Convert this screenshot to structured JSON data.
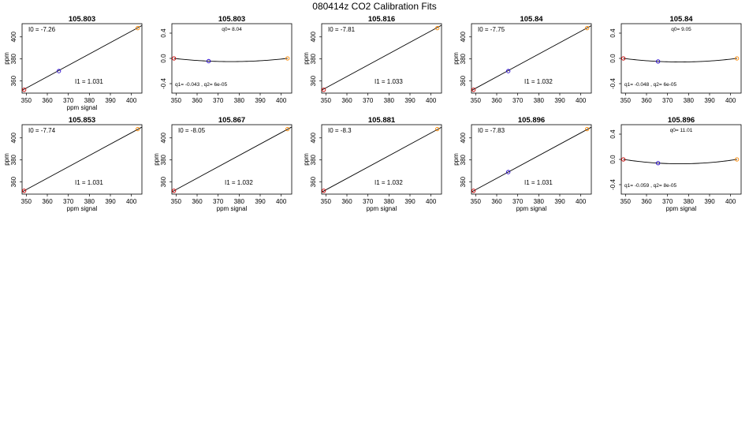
{
  "figure_title": "080414z   CO2 Calibration Fits",
  "colors": {
    "low": "#cc0000",
    "mid": "#2200cc",
    "high": "#ff8800",
    "line": "#000000"
  },
  "chart_data": [
    {
      "type": "scatter",
      "kind": "linear",
      "title": "105.803",
      "xlabel": "ppm signal",
      "ylabel": "ppm",
      "xlim": [
        348,
        405
      ],
      "ylim": [
        349,
        412
      ],
      "xticks": [
        "350",
        "360",
        "370",
        "380",
        "390",
        "400"
      ],
      "yticks": [
        "360",
        "380",
        "400"
      ],
      "points": [
        {
          "x": 349,
          "y": 352
        },
        {
          "x": 365.5,
          "y": 369
        },
        {
          "x": 403,
          "y": 408
        }
      ],
      "intercept": -7.26,
      "slope": 1.031,
      "annotations": [
        "I0 =  -7.26",
        "I1 =  1.031"
      ]
    },
    {
      "type": "scatter",
      "kind": "residual",
      "title": "105.803",
      "xlabel": "",
      "ylabel": "",
      "xlim": [
        348,
        405
      ],
      "ylim": [
        -0.55,
        0.55
      ],
      "xticks": [
        "350",
        "360",
        "370",
        "380",
        "390",
        "400"
      ],
      "yticks": [
        "-0.4",
        "0.0",
        "0.4"
      ],
      "points": [
        {
          "x": 349,
          "y": 0.0
        },
        {
          "x": 365.5,
          "y": -0.043
        },
        {
          "x": 403,
          "y": 0.0
        }
      ],
      "q0": 8.04,
      "q1": -0.043,
      "q2": 6e-05,
      "annotations": [
        "q0= 8.04",
        "q1= -0.043 ,  q2= 6e-05"
      ]
    },
    {
      "type": "scatter",
      "kind": "linear",
      "title": "105.816",
      "xlabel": "",
      "ylabel": "ppm",
      "xlim": [
        348,
        405
      ],
      "ylim": [
        349,
        412
      ],
      "xticks": [
        "350",
        "360",
        "370",
        "380",
        "390",
        "400"
      ],
      "yticks": [
        "360",
        "380",
        "400"
      ],
      "points": [
        {
          "x": 349,
          "y": 352
        },
        {
          "x": 403,
          "y": 408
        }
      ],
      "intercept": -7.81,
      "slope": 1.033,
      "annotations": [
        "I0 =  -7.81",
        "I1 =  1.033"
      ]
    },
    {
      "type": "scatter",
      "kind": "linear",
      "title": "105.84",
      "xlabel": "",
      "ylabel": "ppm",
      "xlim": [
        348,
        405
      ],
      "ylim": [
        349,
        412
      ],
      "xticks": [
        "350",
        "360",
        "370",
        "380",
        "390",
        "400"
      ],
      "yticks": [
        "360",
        "380",
        "400"
      ],
      "points": [
        {
          "x": 349,
          "y": 352
        },
        {
          "x": 365.5,
          "y": 369
        },
        {
          "x": 403,
          "y": 408
        }
      ],
      "intercept": -7.75,
      "slope": 1.032,
      "annotations": [
        "I0 =  -7.75",
        "I1 =  1.032"
      ]
    },
    {
      "type": "scatter",
      "kind": "residual",
      "title": "105.84",
      "xlabel": "",
      "ylabel": "",
      "xlim": [
        348,
        405
      ],
      "ylim": [
        -0.55,
        0.55
      ],
      "xticks": [
        "350",
        "360",
        "370",
        "380",
        "390",
        "400"
      ],
      "yticks": [
        "-0.4",
        "0.0",
        "0.4"
      ],
      "points": [
        {
          "x": 349,
          "y": 0.0
        },
        {
          "x": 365.5,
          "y": -0.048
        },
        {
          "x": 403,
          "y": 0.0
        }
      ],
      "q0": 9.05,
      "q1": -0.048,
      "q2": 6e-05,
      "annotations": [
        "q0= 9.05",
        "q1= -0.048 ,  q2= 6e-05"
      ]
    },
    {
      "type": "scatter",
      "kind": "linear",
      "title": "105.853",
      "xlabel": "ppm signal",
      "ylabel": "ppm",
      "xlim": [
        348,
        405
      ],
      "ylim": [
        349,
        412
      ],
      "xticks": [
        "350",
        "360",
        "370",
        "380",
        "390",
        "400"
      ],
      "yticks": [
        "360",
        "380",
        "400"
      ],
      "points": [
        {
          "x": 349,
          "y": 352
        },
        {
          "x": 403,
          "y": 408
        }
      ],
      "intercept": -7.74,
      "slope": 1.031,
      "annotations": [
        "I0 =  -7.74",
        "I1 =  1.031"
      ]
    },
    {
      "type": "scatter",
      "kind": "linear",
      "title": "105.867",
      "xlabel": "ppm signal",
      "ylabel": "ppm",
      "xlim": [
        348,
        405
      ],
      "ylim": [
        349,
        412
      ],
      "xticks": [
        "350",
        "360",
        "370",
        "380",
        "390",
        "400"
      ],
      "yticks": [
        "360",
        "380",
        "400"
      ],
      "points": [
        {
          "x": 349,
          "y": 352
        },
        {
          "x": 403,
          "y": 408
        }
      ],
      "intercept": -8.05,
      "slope": 1.032,
      "annotations": [
        "I0 =  -8.05",
        "I1 =  1.032"
      ]
    },
    {
      "type": "scatter",
      "kind": "linear",
      "title": "105.881",
      "xlabel": "ppm signal",
      "ylabel": "ppm",
      "xlim": [
        348,
        405
      ],
      "ylim": [
        349,
        412
      ],
      "xticks": [
        "350",
        "360",
        "370",
        "380",
        "390",
        "400"
      ],
      "yticks": [
        "360",
        "380",
        "400"
      ],
      "points": [
        {
          "x": 349,
          "y": 352
        },
        {
          "x": 403,
          "y": 408
        }
      ],
      "intercept": -8.3,
      "slope": 1.032,
      "annotations": [
        "I0 =  -8.3",
        "I1 =  1.032"
      ]
    },
    {
      "type": "scatter",
      "kind": "linear",
      "title": "105.896",
      "xlabel": "ppm signal",
      "ylabel": "ppm",
      "xlim": [
        348,
        405
      ],
      "ylim": [
        349,
        412
      ],
      "xticks": [
        "350",
        "360",
        "370",
        "380",
        "390",
        "400"
      ],
      "yticks": [
        "360",
        "380",
        "400"
      ],
      "points": [
        {
          "x": 349,
          "y": 352
        },
        {
          "x": 365.5,
          "y": 369
        },
        {
          "x": 403,
          "y": 408
        }
      ],
      "intercept": -7.83,
      "slope": 1.031,
      "annotations": [
        "I0 =  -7.83",
        "I1 =  1.031"
      ]
    },
    {
      "type": "scatter",
      "kind": "residual",
      "title": "105.896",
      "xlabel": "ppm signal",
      "ylabel": "",
      "xlim": [
        348,
        405
      ],
      "ylim": [
        -0.55,
        0.55
      ],
      "xticks": [
        "350",
        "360",
        "370",
        "380",
        "390",
        "400"
      ],
      "yticks": [
        "-0.4",
        "0.0",
        "0.4"
      ],
      "points": [
        {
          "x": 349,
          "y": 0.0
        },
        {
          "x": 365.5,
          "y": -0.059
        },
        {
          "x": 403,
          "y": 0.0
        }
      ],
      "q0": 11.01,
      "q1": -0.059,
      "q2": 8e-05,
      "annotations": [
        "q0= 11.01",
        "q1= -0.059 ,  q2= 8e-05"
      ]
    }
  ]
}
